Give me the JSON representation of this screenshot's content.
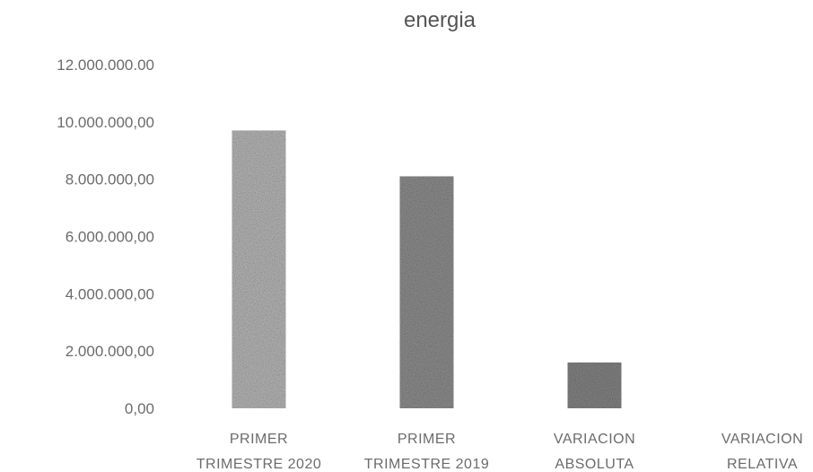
{
  "chart_data": {
    "type": "bar",
    "title": "energia",
    "xlabel": "",
    "ylabel": "",
    "categories": [
      [
        "PRIMER",
        "TRIMESTRE 2020"
      ],
      [
        "PRIMER",
        "TRIMESTRE 2019"
      ],
      [
        "VARIACION",
        "ABSOLUTA"
      ],
      [
        "VARIACION",
        "RELATIVA"
      ]
    ],
    "values": [
      9700000,
      8100000,
      1600000,
      0.2
    ],
    "ylim": [
      0,
      12000000
    ],
    "yticks": [
      0,
      2000000,
      4000000,
      6000000,
      8000000,
      10000000,
      12000000
    ],
    "ytick_labels": [
      "0,00",
      "2.000.000,00",
      "4.000.000,00",
      "6.000.000,00",
      "8.000.000,00",
      "10.000.000,00",
      "12.000.000.00"
    ],
    "grid": false,
    "legend": "none",
    "bar_colors": [
      "#b8b8b8",
      "#8f8f8f",
      "#858585",
      "#9a9a9a"
    ]
  }
}
